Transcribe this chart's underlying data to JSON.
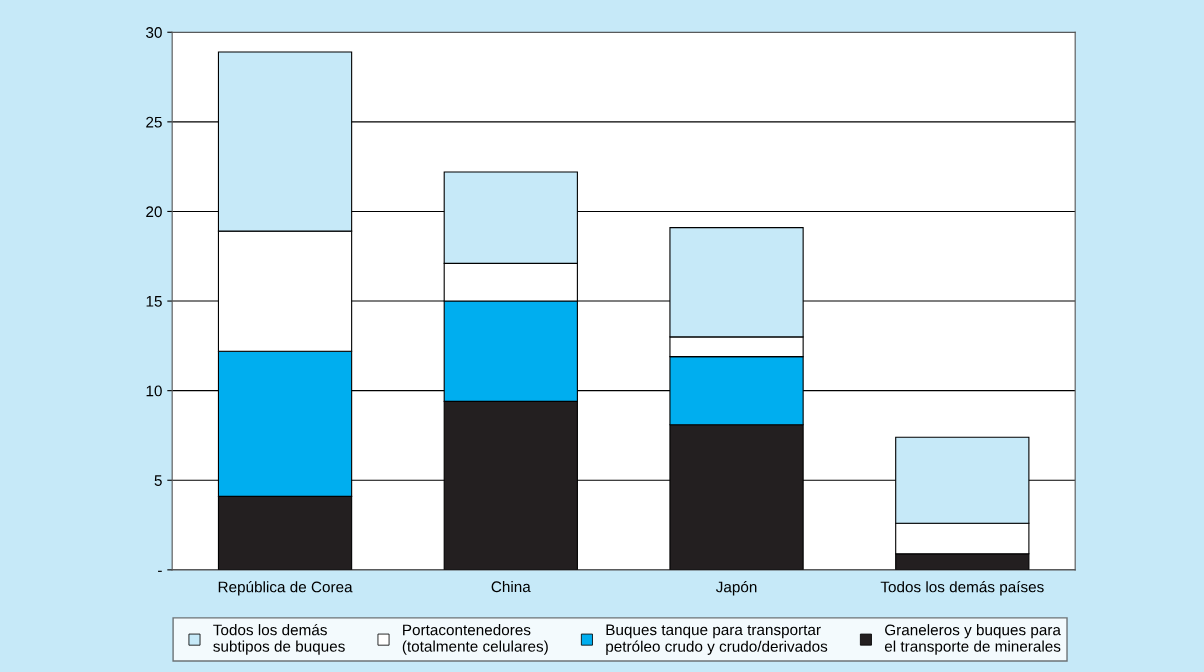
{
  "chart_data": {
    "type": "bar",
    "stacked": true,
    "categories": [
      "República de Corea",
      "China",
      "Japón",
      "Todos los demás países"
    ],
    "series": [
      {
        "name": "Graneleros y buques para\nel transporte de minerales",
        "color": "#231f20",
        "values": [
          4.1,
          9.4,
          8.1,
          0.9
        ]
      },
      {
        "name": "Buques tanque para transportar\npetróleo crudo y crudo/derivados",
        "color": "#00aeef",
        "values": [
          8.1,
          5.6,
          3.8,
          null
        ]
      },
      {
        "name": "Portacontenedores\n(totalmente celulares)",
        "color": "#ffffff",
        "values": [
          6.7,
          2.1,
          1.1,
          1.7
        ]
      },
      {
        "name": "Todos los demás\nsubtipos de buques",
        "color": "#c6e9f8",
        "values": [
          10.0,
          5.1,
          6.1,
          4.8
        ]
      }
    ],
    "ylim": [
      0,
      30
    ],
    "yticks": [
      {
        "value": 0,
        "label": "-"
      },
      5,
      10,
      15,
      20,
      25,
      30
    ],
    "grid": "y",
    "legend": "bottom"
  }
}
